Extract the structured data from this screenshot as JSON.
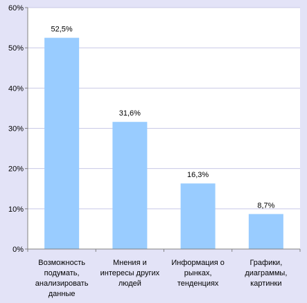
{
  "chart_data": {
    "type": "bar",
    "categories": [
      [
        "Возможность",
        "подумать,",
        "анализировать",
        "данные"
      ],
      [
        "Мнения и",
        "интересы других",
        "людей"
      ],
      [
        "Информация о",
        "рынках,",
        "тенденциях"
      ],
      [
        "Графики,",
        "диаграммы,",
        "картинки"
      ]
    ],
    "values": [
      52.5,
      31.6,
      16.3,
      8.7
    ],
    "value_labels": [
      "52,5%",
      "31,6%",
      "16,3%",
      "8,7%"
    ],
    "y_ticks": [
      "0%",
      "10%",
      "20%",
      "30%",
      "40%",
      "50%",
      "60%"
    ],
    "ylim": [
      0,
      60
    ],
    "grid": true,
    "legend": "none",
    "colors": {
      "bar": "#99ccff",
      "plot_background": "#ffffff",
      "page_background": "#e3e3f7",
      "gridline": "#c8c8e6",
      "axis": "#808080"
    }
  }
}
